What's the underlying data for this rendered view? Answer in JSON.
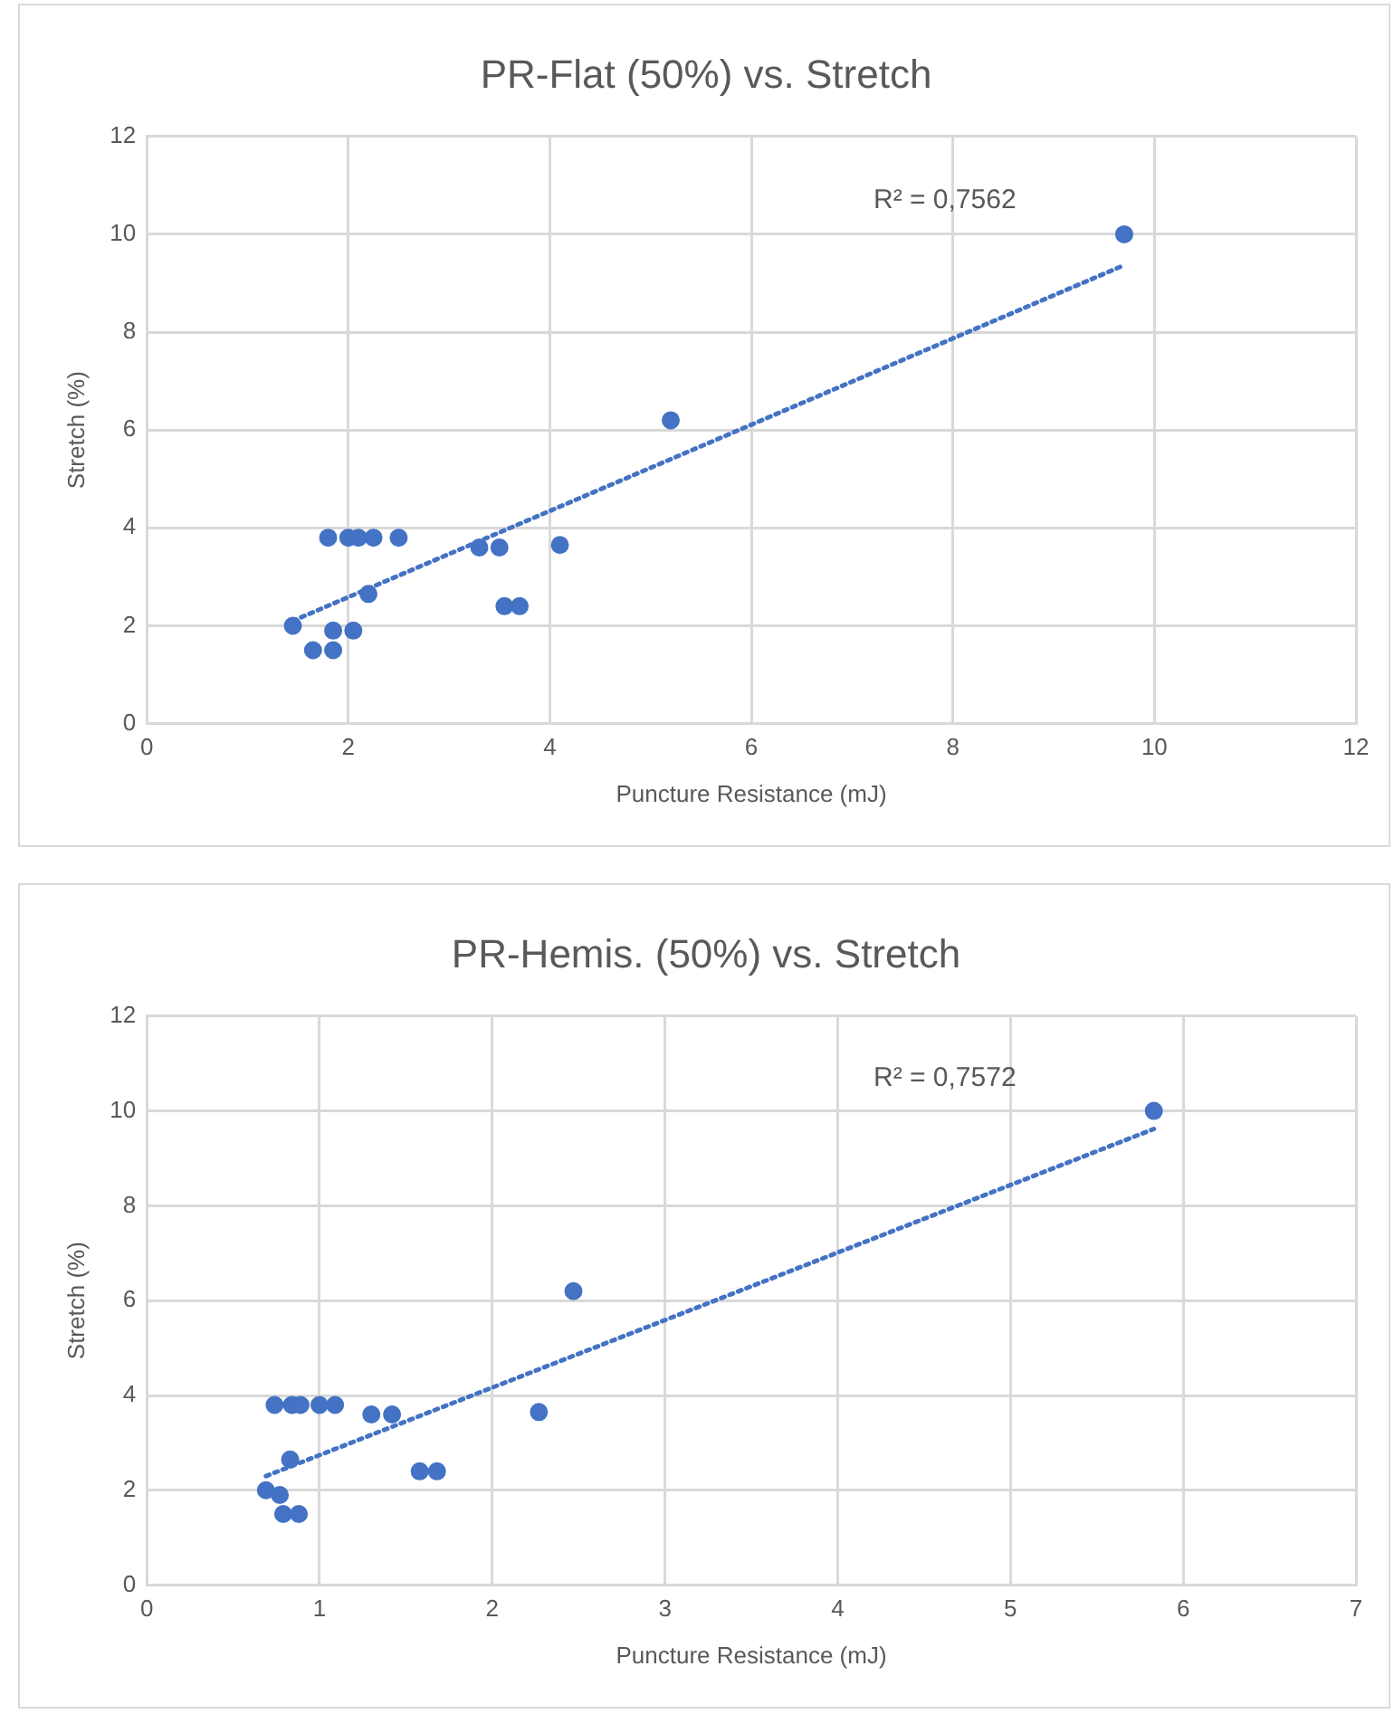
{
  "chart_data": [
    {
      "type": "scatter",
      "title": "PR-Flat (50%) vs. Stretch",
      "xlabel": "Puncture Resistance (mJ)",
      "ylabel": "Stretch (%)",
      "xlim": [
        0,
        12
      ],
      "xticks": [
        0,
        2,
        4,
        6,
        8,
        10,
        12
      ],
      "ylim": [
        0,
        12
      ],
      "yticks": [
        0,
        2,
        4,
        6,
        8,
        10,
        12
      ],
      "grid": true,
      "legend": false,
      "series": [
        {
          "color": "#4472c4",
          "marker": "circle",
          "x": [
            1.45,
            1.65,
            1.85,
            1.85,
            2.05,
            1.8,
            2.0,
            2.1,
            2.2,
            2.25,
            2.5,
            2.2,
            3.3,
            3.5,
            3.55,
            3.7,
            4.1,
            5.2,
            9.7
          ],
          "values": [
            2.0,
            1.5,
            1.5,
            1.9,
            1.9,
            3.8,
            3.8,
            3.8,
            null,
            3.8,
            3.8,
            2.65,
            3.6,
            3.6,
            2.4,
            2.4,
            3.65,
            6.2,
            10.0
          ]
        },
        {
          "type": "line",
          "color": "#4472c4",
          "marker": "none",
          "line_style": "dotted",
          "x": [
            1.45,
            9.7
          ],
          "values": [
            2.1,
            9.37
          ]
        }
      ],
      "annotations": [
        "R² = 0,7562"
      ]
    },
    {
      "type": "scatter",
      "title": "PR-Hemis. (50%) vs. Stretch",
      "xlabel": "Puncture Resistance (mJ)",
      "ylabel": "Stretch (%)",
      "xlim": [
        0,
        7
      ],
      "xticks": [
        0,
        1,
        2,
        3,
        4,
        5,
        6,
        7
      ],
      "ylim": [
        0,
        12
      ],
      "yticks": [
        0,
        2,
        4,
        6,
        8,
        10,
        12
      ],
      "grid": true,
      "legend": false,
      "series": [
        {
          "color": "#4472c4",
          "marker": "circle",
          "x": [
            0.69,
            0.77,
            0.79,
            0.88,
            0.74,
            0.84,
            0.89,
            1.0,
            1.09,
            0.83,
            1.3,
            1.42,
            1.58,
            1.68,
            2.27,
            2.47,
            5.83
          ],
          "values": [
            2.0,
            1.9,
            1.5,
            1.5,
            3.8,
            3.8,
            3.8,
            3.8,
            3.8,
            2.65,
            3.6,
            3.6,
            2.4,
            2.4,
            3.65,
            6.2,
            10.0
          ]
        },
        {
          "type": "line",
          "color": "#4472c4",
          "marker": "none",
          "line_style": "dotted",
          "x": [
            0.69,
            5.83
          ],
          "values": [
            2.3,
            9.62
          ]
        }
      ],
      "annotations": [
        "R² = 0,7572"
      ]
    }
  ]
}
